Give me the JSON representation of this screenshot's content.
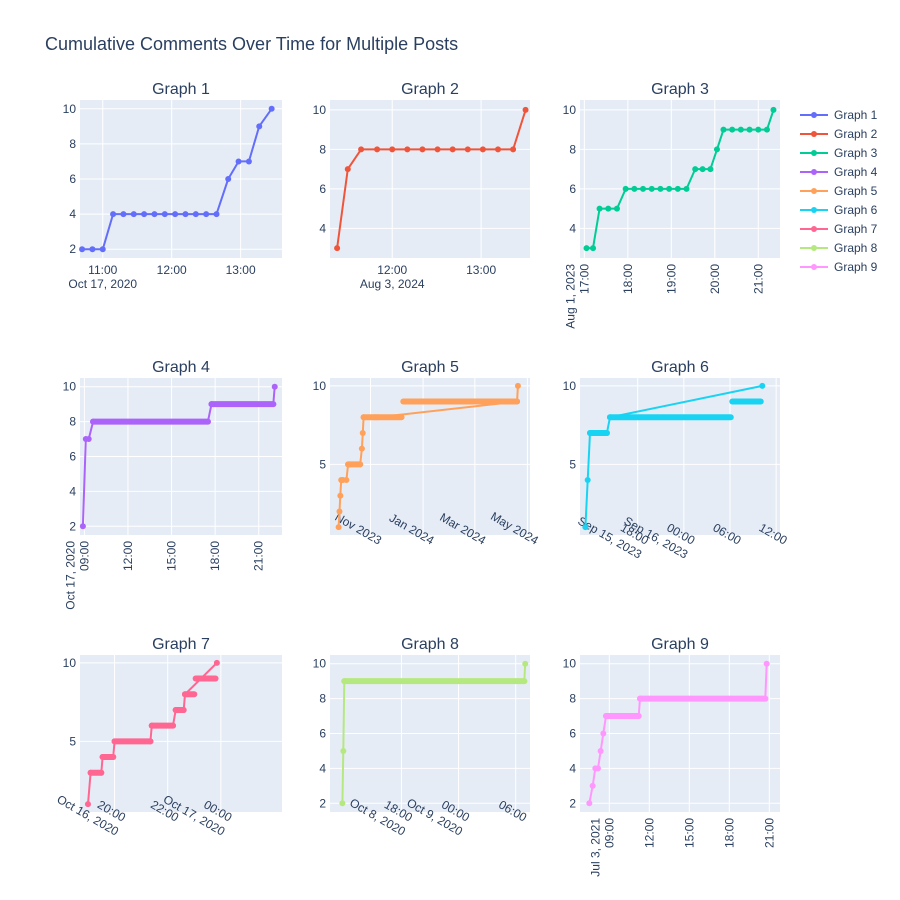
{
  "colors": {
    "plot_bg": "#E5ECF6",
    "grid": "#ffffff",
    "text": "#2a3f5f",
    "series": [
      "#636efa",
      "#EF553B",
      "#00cc96",
      "#ab63fa",
      "#FFA15A",
      "#19d3f3",
      "#FF6692",
      "#B6E880",
      "#FF97FF"
    ]
  },
  "chart_data": {
    "title": "Cumulative Comments Over Time for Multiple Posts",
    "legend": {
      "placement": "top-right",
      "entries": [
        "Graph 1",
        "Graph 2",
        "Graph 3",
        "Graph 4",
        "Graph 5",
        "Graph 6",
        "Graph 7",
        "Graph 8",
        "Graph 9"
      ]
    },
    "subplots": [
      {
        "type": "line",
        "title": "Graph 1",
        "x_unit": "hours from Oct 17, 2020 00:00",
        "xlim": [
          10.67,
          13.6
        ],
        "ylim": [
          1.5,
          10.5
        ],
        "x_ticks": [
          {
            "v": 11,
            "label": "11:00"
          },
          {
            "v": 12,
            "label": "12:00"
          },
          {
            "v": 13,
            "label": "13:00"
          }
        ],
        "x_date_label": "Oct 17, 2020",
        "tick_style": "flat",
        "y_ticks": [
          2,
          4,
          6,
          8,
          10
        ],
        "x": [
          10.7,
          10.85,
          11.0,
          11.15,
          11.3,
          11.45,
          11.6,
          11.75,
          11.9,
          12.05,
          12.2,
          12.35,
          12.5,
          12.65,
          12.82,
          12.97,
          13.12,
          13.27,
          13.45
        ],
        "y": [
          2,
          2,
          2,
          4,
          4,
          4,
          4,
          4,
          4,
          4,
          4,
          4,
          4,
          4,
          6,
          7,
          7,
          9,
          10
        ]
      },
      {
        "type": "line",
        "title": "Graph 2",
        "x_unit": "hours from Aug 3, 2024 00:00",
        "xlim": [
          11.3,
          13.55
        ],
        "ylim": [
          2.5,
          10.5
        ],
        "x_ticks": [
          {
            "v": 12,
            "label": "12:00"
          },
          {
            "v": 13,
            "label": "13:00"
          }
        ],
        "x_date_label": "Aug 3, 2024",
        "tick_style": "flat",
        "y_ticks": [
          4,
          6,
          8,
          10
        ],
        "x": [
          11.38,
          11.5,
          11.65,
          11.83,
          12.0,
          12.17,
          12.34,
          12.51,
          12.68,
          12.85,
          13.02,
          13.19,
          13.36,
          13.5
        ],
        "y": [
          3,
          7,
          8,
          8,
          8,
          8,
          8,
          8,
          8,
          8,
          8,
          8,
          8,
          10
        ]
      },
      {
        "type": "line",
        "title": "Graph 3",
        "x_unit": "hours from Aug 1, 2023 00:00",
        "xlim": [
          16.9,
          21.5
        ],
        "ylim": [
          2.5,
          10.5
        ],
        "x_ticks": [
          {
            "v": 17,
            "label": "17:00"
          },
          {
            "v": 18,
            "label": "18:00"
          },
          {
            "v": 19,
            "label": "19:00"
          },
          {
            "v": 20,
            "label": "20:00"
          },
          {
            "v": 21,
            "label": "21:00"
          }
        ],
        "x_date_label": "Aug 1, 2023",
        "tick_style": "vertical",
        "y_ticks": [
          4,
          6,
          8,
          10
        ],
        "x": [
          17.05,
          17.2,
          17.35,
          17.55,
          17.75,
          17.95,
          18.15,
          18.35,
          18.55,
          18.75,
          18.95,
          19.15,
          19.35,
          19.55,
          19.72,
          19.9,
          20.05,
          20.2,
          20.4,
          20.6,
          20.8,
          21.0,
          21.2,
          21.35
        ],
        "y": [
          3,
          3,
          5,
          5,
          5,
          6,
          6,
          6,
          6,
          6,
          6,
          6,
          6,
          7,
          7,
          7,
          8,
          9,
          9,
          9,
          9,
          9,
          9,
          10
        ]
      },
      {
        "type": "line",
        "title": "Graph 4",
        "x_unit": "hours from Oct 17, 2020 00:00",
        "xlim": [
          8.7,
          22.6
        ],
        "ylim": [
          1.5,
          10.5
        ],
        "x_ticks": [
          {
            "v": 9,
            "label": "09:00"
          },
          {
            "v": 12,
            "label": "12:00"
          },
          {
            "v": 15,
            "label": "15:00"
          },
          {
            "v": 18,
            "label": "18:00"
          },
          {
            "v": 21,
            "label": "21:00"
          }
        ],
        "x_date_label": "Oct 17, 2020",
        "tick_style": "vertical",
        "y_ticks": [
          2,
          4,
          6,
          8,
          10
        ],
        "x": [
          8.9,
          9.1,
          9.3,
          9.6,
          17.5,
          17.75,
          22.0,
          22.1
        ],
        "y": [
          2,
          7,
          7,
          8,
          8,
          9,
          9,
          10
        ],
        "dense_segments": [
          [
            9.6,
            17.5,
            8
          ],
          [
            17.75,
            22.0,
            9
          ]
        ]
      },
      {
        "type": "line",
        "title": "Graph 5",
        "x_unit": "days from Nov 1, 2023",
        "xlim": [
          -47,
          185
        ],
        "ylim": [
          0.5,
          10.5
        ],
        "x_ticks": [
          {
            "v": 0,
            "label": "Nov 2023"
          },
          {
            "v": 61,
            "label": "Jan 2024"
          },
          {
            "v": 121,
            "label": "Mar 2024"
          },
          {
            "v": 182,
            "label": "May 2024"
          }
        ],
        "tick_style": "angled",
        "y_ticks": [
          5,
          10
        ],
        "x": [
          -37,
          -36,
          -35,
          -34,
          -32,
          -28,
          -26,
          -24,
          -12,
          -10,
          -9,
          -8,
          5,
          8,
          170,
          171
        ],
        "y": [
          1,
          2,
          3,
          4,
          4,
          4,
          5,
          5,
          5,
          6,
          7,
          8,
          8,
          8,
          9,
          10
        ],
        "dense_segments": [
          [
            -26,
            -12,
            5
          ],
          [
            -8,
            36,
            8
          ],
          [
            38,
            170,
            9
          ]
        ]
      },
      {
        "type": "line",
        "title": "Graph 6",
        "x_unit": "hours from Sep 15, 2023 00:00",
        "xlim": [
          10.5,
          36.5
        ],
        "ylim": [
          0.5,
          10.5
        ],
        "x_ticks": [
          {
            "v": 18,
            "label": "18:00",
            "date": "Sep 15, 2023"
          },
          {
            "v": 24,
            "label": "00:00",
            "date": "Sep 16, 2023"
          },
          {
            "v": 30,
            "label": "06:00"
          },
          {
            "v": 36,
            "label": "12:00"
          }
        ],
        "tick_style": "angled",
        "y_ticks": [
          5,
          10
        ],
        "x": [
          11.2,
          11.5,
          11.8,
          14.0,
          14.4,
          34.2
        ],
        "y": [
          1,
          4,
          7,
          7,
          8,
          10
        ],
        "dense_segments": [
          [
            11.8,
            14.0,
            7
          ],
          [
            14.4,
            30.1,
            8
          ],
          [
            30.3,
            34.0,
            9
          ]
        ]
      },
      {
        "type": "line",
        "title": "Graph 7",
        "x_unit": "hours from Oct 16, 2020 00:00",
        "xlim": [
          18.7,
          26.3
        ],
        "ylim": [
          0.5,
          10.5
        ],
        "x_ticks": [
          {
            "v": 20,
            "label": "20:00",
            "date": "Oct 16, 2020"
          },
          {
            "v": 22,
            "label": "22:00"
          },
          {
            "v": 24,
            "label": "00:00",
            "date": "Oct 17, 2020"
          }
        ],
        "tick_style": "angled",
        "y_ticks": [
          5,
          10
        ],
        "x": [
          19.0,
          19.1,
          19.5,
          19.55,
          19.95,
          20.0,
          21.35,
          21.4,
          22.2,
          22.3,
          22.6,
          22.65,
          23.85
        ],
        "y": [
          1,
          3,
          3,
          4,
          4,
          5,
          5,
          6,
          6,
          7,
          7,
          8,
          10
        ],
        "dense_segments": [
          [
            19.1,
            19.5,
            3
          ],
          [
            19.55,
            19.95,
            4
          ],
          [
            20.0,
            21.35,
            5
          ],
          [
            21.4,
            22.2,
            6
          ],
          [
            22.3,
            22.6,
            7
          ],
          [
            22.65,
            23.0,
            8
          ],
          [
            23.05,
            23.8,
            9
          ]
        ]
      },
      {
        "type": "line",
        "title": "Graph 8",
        "x_unit": "hours from Oct 8, 2020 00:00",
        "xlim": [
          10.5,
          31.5
        ],
        "ylim": [
          1.5,
          10.5
        ],
        "x_ticks": [
          {
            "v": 18,
            "label": "18:00",
            "date": "Oct 8, 2020"
          },
          {
            "v": 24,
            "label": "00:00",
            "date": "Oct 9, 2020"
          },
          {
            "v": 30,
            "label": "06:00"
          }
        ],
        "tick_style": "angled",
        "y_ticks": [
          2,
          4,
          6,
          8,
          10
        ],
        "x": [
          11.8,
          11.9,
          12.0,
          30.9,
          31.0
        ],
        "y": [
          2,
          5,
          9,
          9,
          10
        ],
        "dense_segments": [
          [
            12.0,
            30.9,
            9
          ]
        ]
      },
      {
        "type": "line",
        "title": "Graph 9",
        "x_unit": "hours from Jul 3, 2021 00:00",
        "xlim": [
          6.8,
          21.8
        ],
        "ylim": [
          1.5,
          10.5
        ],
        "x_ticks": [
          {
            "v": 9,
            "label": "09:00"
          },
          {
            "v": 12,
            "label": "12:00"
          },
          {
            "v": 15,
            "label": "15:00"
          },
          {
            "v": 18,
            "label": "18:00"
          },
          {
            "v": 21,
            "label": "21:00"
          }
        ],
        "x_date_label": "Jul 3, 2021",
        "tick_style": "vertical",
        "y_ticks": [
          2,
          4,
          6,
          8,
          10
        ],
        "x": [
          7.5,
          7.75,
          7.95,
          8.15,
          8.35,
          8.55,
          8.75,
          11.2,
          11.3,
          20.7,
          20.8
        ],
        "y": [
          2,
          3,
          4,
          4,
          5,
          6,
          7,
          7,
          8,
          8,
          10
        ],
        "dense_segments": [
          [
            8.75,
            11.2,
            7
          ],
          [
            11.3,
            20.7,
            8
          ]
        ]
      }
    ]
  }
}
